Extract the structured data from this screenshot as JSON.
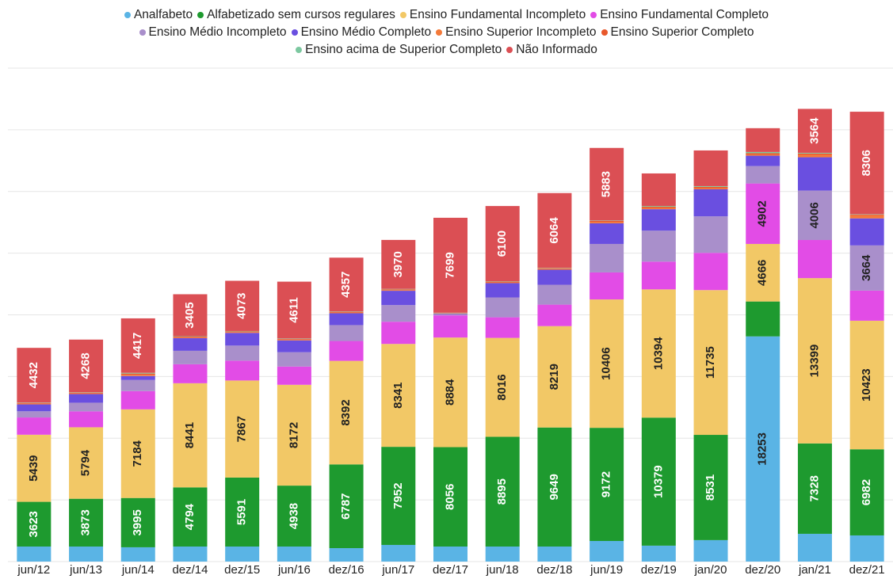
{
  "chart_data": {
    "type": "stacked-bar",
    "categories": [
      "jun/12",
      "jun/13",
      "jun/14",
      "dez/14",
      "dez/15",
      "jun/16",
      "dez/16",
      "jun/17",
      "dez/17",
      "jun/18",
      "dez/18",
      "jun/19",
      "dez/19",
      "jan/20",
      "dez/20",
      "jan/21",
      "dez/21"
    ],
    "series": [
      {
        "name": "Analfabeto",
        "color": "#5ab4e5",
        "values": [
          1220,
          1220,
          1160,
          1220,
          1220,
          1220,
          1090,
          1350,
          1220,
          1220,
          1220,
          1670,
          1290,
          1740,
          18253,
          2250,
          2120
        ]
      },
      {
        "name": "Alfabetizado sem cursos regulares",
        "color": "#1e9a2f",
        "values": [
          3623,
          3873,
          3995,
          4794,
          5591,
          4938,
          6787,
          7952,
          8056,
          8895,
          9649,
          9172,
          10379,
          8531,
          2830,
          7328,
          6982
        ]
      },
      {
        "name": "Ensino Fundamental Incompleto",
        "color": "#f2c866",
        "values": [
          5439,
          5794,
          7184,
          8441,
          7867,
          8172,
          8392,
          8341,
          8884,
          8016,
          8219,
          10406,
          10394,
          11735,
          4666,
          13399,
          10423
        ]
      },
      {
        "name": "Ensino Fundamental Completo",
        "color": "#e24ce6",
        "values": [
          1400,
          1290,
          1480,
          1540,
          1610,
          1480,
          1610,
          1800,
          1800,
          1670,
          1740,
          2190,
          2250,
          3020,
          4902,
          3090,
          2440
        ]
      },
      {
        "name": "Ensino Médio Incompleto",
        "color": "#a98fcb",
        "values": [
          500,
          700,
          900,
          1090,
          1220,
          1160,
          1290,
          1350,
          60,
          1610,
          1610,
          2310,
          2510,
          2960,
          1410,
          4006,
          3664
        ]
      },
      {
        "name": "Ensino Médio Completo",
        "color": "#6a4fe0",
        "values": [
          560,
          700,
          320,
          1030,
          1030,
          960,
          960,
          1160,
          60,
          1160,
          1220,
          1670,
          1740,
          2190,
          840,
          2700,
          2190
        ]
      },
      {
        "name": "Ensino Superior Incompleto",
        "color": "#f47a3a",
        "values": [
          60,
          60,
          100,
          60,
          60,
          60,
          60,
          60,
          30,
          60,
          60,
          100,
          100,
          100,
          100,
          200,
          250
        ]
      },
      {
        "name": "Ensino Superior Completo",
        "color": "#e8582c",
        "values": [
          60,
          60,
          100,
          60,
          60,
          60,
          60,
          60,
          30,
          60,
          60,
          100,
          100,
          100,
          100,
          100,
          60
        ]
      },
      {
        "name": "Ensino acima de Superior Completo",
        "color": "#7cc8a0",
        "values": [
          30,
          30,
          60,
          30,
          30,
          30,
          30,
          30,
          30,
          30,
          30,
          30,
          60,
          60,
          100,
          60,
          30
        ]
      },
      {
        "name": "Não Informado",
        "color": "#db4f54",
        "values": [
          4432,
          4268,
          4417,
          3405,
          4073,
          4611,
          4357,
          3970,
          7699,
          6100,
          6064,
          5883,
          2640,
          2890,
          1930,
          3564,
          8306
        ]
      }
    ],
    "ylim": [
      0,
      40000
    ],
    "yticks": [
      0,
      5000,
      10000,
      15000,
      20000,
      25000,
      30000,
      35000,
      40000
    ],
    "grid": true
  }
}
